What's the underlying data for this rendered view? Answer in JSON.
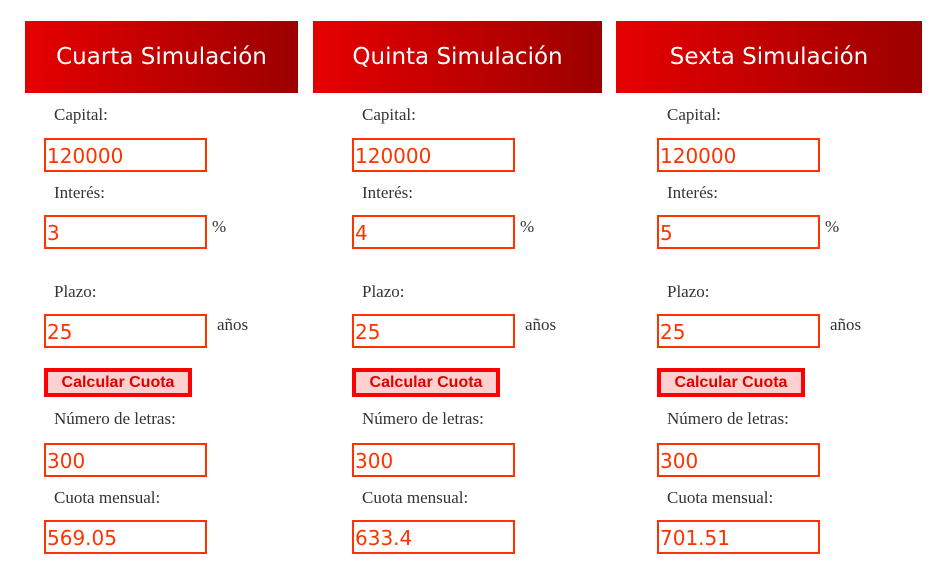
{
  "labels": {
    "capital": "Capital:",
    "interes": "Interés:",
    "plazo": "Plazo:",
    "letras": "Número de letras:",
    "cuota": "Cuota mensual:",
    "percent": "%",
    "anos": "años",
    "button": "Calcular Cuota"
  },
  "simulations": [
    {
      "title": "Cuarta Simulación",
      "capital": "120000",
      "interes": "3",
      "plazo": "25",
      "letras": "300",
      "cuota": "569.05"
    },
    {
      "title": "Quinta Simulación",
      "capital": "120000",
      "interes": "4",
      "plazo": "25",
      "letras": "300",
      "cuota": "633.4"
    },
    {
      "title": "Sexta Simulación",
      "capital": "120000",
      "interes": "5",
      "plazo": "25",
      "letras": "300",
      "cuota": "701.51"
    }
  ]
}
